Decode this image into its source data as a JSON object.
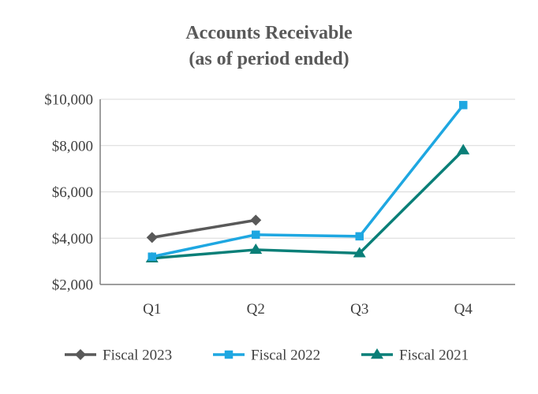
{
  "chart_data": {
    "type": "line",
    "title": "Accounts Receivable",
    "subtitle": "(as of period ended)",
    "xlabel": "",
    "ylabel": "",
    "categories": [
      "Q1",
      "Q2",
      "Q3",
      "Q4"
    ],
    "ylim": [
      2000,
      10000
    ],
    "yticks": [
      2000,
      4000,
      6000,
      8000,
      10000
    ],
    "ytick_labels": [
      "$2,000",
      "$4,000",
      "$6,000",
      "$8,000",
      "$10,000"
    ],
    "grid": true,
    "legend_position": "bottom",
    "series": [
      {
        "name": "Fiscal 2023",
        "values": [
          4030,
          4780,
          null,
          null
        ],
        "color": "#595959",
        "marker": "diamond"
      },
      {
        "name": "Fiscal 2022",
        "values": [
          3200,
          4150,
          4080,
          9750
        ],
        "color": "#1ea7e1",
        "marker": "square"
      },
      {
        "name": "Fiscal 2021",
        "values": [
          3130,
          3500,
          3350,
          7800
        ],
        "color": "#0a7f78",
        "marker": "triangle"
      }
    ]
  }
}
